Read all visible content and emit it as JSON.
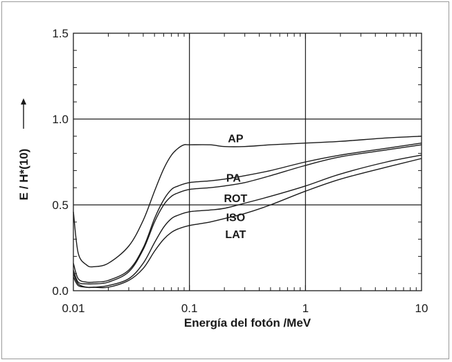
{
  "chart_data": {
    "type": "line",
    "xscale": "log",
    "xlim": [
      0.01,
      10
    ],
    "ylim": [
      0.0,
      1.5
    ],
    "xticks": [
      0.01,
      0.1,
      1,
      10
    ],
    "xtick_labels": [
      "0.01",
      "0.1",
      "1",
      "10"
    ],
    "yticks": [
      0.0,
      0.5,
      1.0,
      1.5
    ],
    "ytick_labels": [
      "0.0",
      "0.5",
      "1.0",
      "1.5"
    ],
    "xlabel": "Energía del fotón /MeV",
    "ylabel": "E / H*(10)",
    "grid": true,
    "series": [
      {
        "name": "AP",
        "x": [
          0.01,
          0.011,
          0.013,
          0.015,
          0.02,
          0.03,
          0.04,
          0.05,
          0.06,
          0.07,
          0.08,
          0.09,
          0.1,
          0.15,
          0.2,
          0.3,
          0.5,
          1,
          2,
          5,
          10
        ],
        "y": [
          0.46,
          0.22,
          0.15,
          0.14,
          0.16,
          0.26,
          0.41,
          0.58,
          0.71,
          0.79,
          0.83,
          0.85,
          0.85,
          0.85,
          0.84,
          0.84,
          0.85,
          0.86,
          0.87,
          0.89,
          0.9
        ]
      },
      {
        "name": "PA",
        "x": [
          0.01,
          0.011,
          0.013,
          0.015,
          0.02,
          0.03,
          0.04,
          0.05,
          0.06,
          0.07,
          0.08,
          0.1,
          0.15,
          0.2,
          0.3,
          0.5,
          1,
          2,
          5,
          10
        ],
        "y": [
          0.16,
          0.07,
          0.05,
          0.05,
          0.06,
          0.12,
          0.25,
          0.42,
          0.53,
          0.59,
          0.61,
          0.63,
          0.64,
          0.65,
          0.67,
          0.7,
          0.75,
          0.79,
          0.83,
          0.86
        ]
      },
      {
        "name": "ROT",
        "x": [
          0.01,
          0.011,
          0.013,
          0.015,
          0.02,
          0.03,
          0.04,
          0.05,
          0.06,
          0.07,
          0.08,
          0.1,
          0.15,
          0.2,
          0.3,
          0.5,
          1,
          2,
          5,
          10
        ],
        "y": [
          0.12,
          0.05,
          0.04,
          0.04,
          0.05,
          0.11,
          0.24,
          0.4,
          0.5,
          0.55,
          0.57,
          0.59,
          0.6,
          0.61,
          0.63,
          0.67,
          0.73,
          0.78,
          0.82,
          0.85
        ]
      },
      {
        "name": "ISO",
        "x": [
          0.01,
          0.011,
          0.013,
          0.015,
          0.02,
          0.03,
          0.04,
          0.05,
          0.06,
          0.07,
          0.08,
          0.1,
          0.15,
          0.2,
          0.3,
          0.5,
          1,
          2,
          5,
          10
        ],
        "y": [
          0.1,
          0.04,
          0.02,
          0.02,
          0.03,
          0.07,
          0.16,
          0.28,
          0.37,
          0.42,
          0.44,
          0.46,
          0.47,
          0.48,
          0.51,
          0.55,
          0.61,
          0.68,
          0.75,
          0.79
        ]
      },
      {
        "name": "LAT",
        "x": [
          0.01,
          0.011,
          0.013,
          0.015,
          0.02,
          0.03,
          0.04,
          0.05,
          0.06,
          0.07,
          0.08,
          0.1,
          0.15,
          0.2,
          0.3,
          0.5,
          1,
          2,
          5,
          10
        ],
        "y": [
          0.08,
          0.03,
          0.02,
          0.02,
          0.02,
          0.06,
          0.13,
          0.23,
          0.3,
          0.34,
          0.36,
          0.38,
          0.4,
          0.42,
          0.45,
          0.5,
          0.58,
          0.65,
          0.72,
          0.77
        ]
      }
    ]
  }
}
